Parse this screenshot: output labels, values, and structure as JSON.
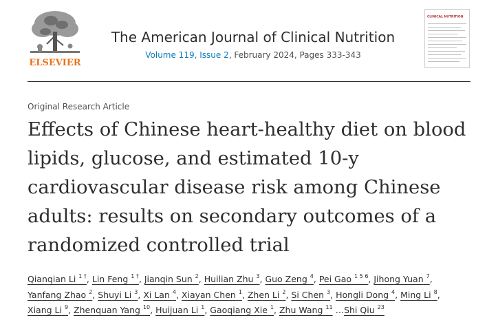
{
  "header": {
    "publisher": "ELSEVIER",
    "journal_title": "The American Journal of Clinical Nutrition",
    "volume_link": "Volume 119, Issue 2",
    "issue_rest": ", February 2024, Pages 333-343",
    "cover_title": "CLINICAL NUTRITION"
  },
  "article": {
    "type": "Original Research Article",
    "title": "Effects of Chinese heart-healthy diet on blood lipids, glucose, and estimated 10-y cardiovascular disease risk among Chinese adults: results on secondary outcomes of a randomized controlled trial"
  },
  "authors": [
    {
      "name": "Qianqian Li",
      "sup": "1 †"
    },
    {
      "name": "Lin Feng",
      "sup": "1 †"
    },
    {
      "name": "Jianqin Sun",
      "sup": "2"
    },
    {
      "name": "Huilian Zhu",
      "sup": "3"
    },
    {
      "name": "Guo Zeng",
      "sup": "4"
    },
    {
      "name": "Pei Gao",
      "sup": "1 5 6"
    },
    {
      "name": "Jihong Yuan",
      "sup": "7"
    },
    {
      "name": "Yanfang Zhao",
      "sup": "2"
    },
    {
      "name": "Shuyi Li",
      "sup": "3"
    },
    {
      "name": "Xi Lan",
      "sup": "4"
    },
    {
      "name": "Xiayan Chen",
      "sup": "1"
    },
    {
      "name": "Zhen Li",
      "sup": "2"
    },
    {
      "name": "Si Chen",
      "sup": "3"
    },
    {
      "name": "Hongli Dong",
      "sup": "4"
    },
    {
      "name": "Ming Li",
      "sup": "8"
    },
    {
      "name": "Xiang Li",
      "sup": "9"
    },
    {
      "name": "Zhenquan Yang",
      "sup": "10"
    },
    {
      "name": "Huijuan Li",
      "sup": "1"
    },
    {
      "name": "Gaoqiang Xie",
      "sup": "1"
    },
    {
      "name": "Zhu Wang",
      "sup": "11"
    },
    {
      "name": "Shi Qiu",
      "sup": "23"
    }
  ],
  "colors": {
    "publisher_orange": "#e9711c",
    "link_blue": "#0c7dbb",
    "text": "#2e2e2e"
  }
}
